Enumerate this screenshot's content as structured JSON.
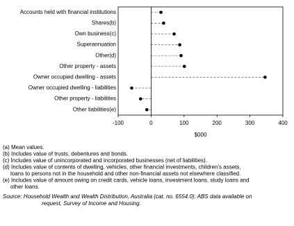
{
  "chart_data": {
    "type": "dot",
    "categories": [
      "Accounts held with financial institutions",
      "Shares(b)",
      "Own business(c)",
      "Superannuation",
      "Other(d)",
      "Other property - assets",
      "Owner occupied dwelling - assets",
      "Owner occupied dwelling - liabilities",
      "Other property - liabilities",
      "Other liabilities(e)"
    ],
    "values": [
      30,
      38,
      70,
      87,
      91,
      101,
      346,
      -59,
      -32,
      -13
    ],
    "color": "#000000",
    "xlabel": "$000",
    "xlim": [
      -100,
      400
    ],
    "xticks": [
      -100,
      0,
      100,
      200,
      300,
      400
    ],
    "notes": [
      "(a) Mean values.",
      "(b) Includes value of trusts, debentures and bonds.",
      "(c) Includes value of unincorporated and incorporated businesses (net of liabilities).",
      "(d) Includes value of contents of dwelling, vehicles, other financial investments, children's assets,",
      "loans to persons not in the household and other non-financial assets not elsewhere classified.",
      "(e) Includes value of amount owing on credit cards, vehicle loans, investment loans, study loans and",
      "other loans."
    ],
    "source": [
      "Source: Household Wealth and Wealth Distribution, Australia (cat. no. 6554.0); ABS data available on",
      "request, Survey of Income and Housing."
    ]
  }
}
